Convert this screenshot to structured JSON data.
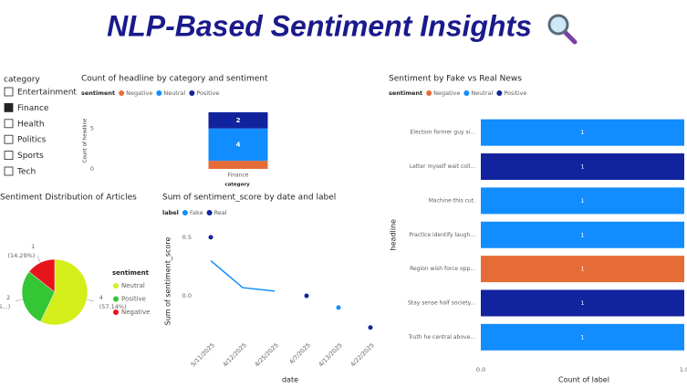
{
  "title": "NLP-Based Sentiment Insights",
  "slicer": {
    "title": "category",
    "items": [
      "Entertainment",
      "Finance",
      "Health",
      "Politics",
      "Sports",
      "Tech"
    ],
    "checked": [
      false,
      true,
      false,
      false,
      false,
      false
    ]
  },
  "chart_data": [
    {
      "type": "column",
      "title": "Count of headline by category and sentiment",
      "legend_title": "sentiment",
      "x_label": "category",
      "y_label": "Count of headline",
      "categories": [
        "Finance"
      ],
      "series": [
        {
          "name": "Negative",
          "color": "#e66c37",
          "values": [
            1
          ],
          "data_labels": false
        },
        {
          "name": "Neutral",
          "color": "#118dff",
          "values": [
            4
          ],
          "data_labels": true
        },
        {
          "name": "Positive",
          "color": "#12239e",
          "values": [
            2
          ],
          "data_labels": true
        }
      ],
      "ylim": [
        0,
        7
      ],
      "yticks": [
        0,
        5
      ]
    },
    {
      "type": "pie",
      "title": "Sentiment Distribution of Articles",
      "legend_title": "sentiment",
      "categories": [
        "Neutral",
        "Positive",
        "Negative"
      ],
      "values": [
        4,
        2,
        1
      ],
      "percent_labels": [
        "(57.14%)",
        "(28.5...)",
        "(14.29%)"
      ],
      "colors": [
        "#d4ee1a",
        "#34c634",
        "#e8141c"
      ]
    },
    {
      "type": "line",
      "title": "Sum of sentiment_score by date and label",
      "legend_title": "label",
      "x_label": "date",
      "y_label": "Sum of sentiment_score",
      "categories": [
        "5/11/2025",
        "4/12/2025",
        "4/25/2025",
        "4/7/2025",
        "4/13/2025",
        "4/22/2025"
      ],
      "series": [
        {
          "name": "Fake",
          "color": "#118dff",
          "values": [
            0.3,
            0.07,
            0.04,
            null,
            -0.1,
            null
          ]
        },
        {
          "name": "Real",
          "color": "#12239e",
          "values": [
            0.5,
            null,
            null,
            0,
            null,
            -0.27
          ]
        }
      ],
      "ylim": [
        -0.35,
        0.6
      ],
      "yticks": [
        {
          "value": 0,
          "label": "0.0"
        },
        {
          "value": 0.5,
          "label": "0.5"
        }
      ]
    },
    {
      "type": "hbar",
      "title": "Sentiment by Fake vs Real News",
      "legend_title": "sentiment",
      "x_label": "Count of label",
      "y_label": "headline",
      "categories": [
        "Election former guy si...",
        "Letter myself wait coll...",
        "Machine this cut.",
        "Practice identify laugh...",
        "Region wish force opp...",
        "Stay sense half society...",
        "Truth he central above..."
      ],
      "series": [
        {
          "name": "Negative",
          "color": "#e66c37",
          "values": [
            null,
            null,
            null,
            null,
            1,
            null,
            null
          ]
        },
        {
          "name": "Neutral",
          "color": "#118dff",
          "values": [
            1,
            null,
            1,
            1,
            null,
            null,
            1
          ]
        },
        {
          "name": "Positive",
          "color": "#12239e",
          "values": [
            null,
            1,
            null,
            null,
            null,
            1,
            null
          ]
        }
      ],
      "xlim": [
        0,
        1
      ],
      "xticks": [
        {
          "value": 0,
          "label": "0.0"
        },
        {
          "value": 1,
          "label": "1.0"
        }
      ]
    }
  ]
}
